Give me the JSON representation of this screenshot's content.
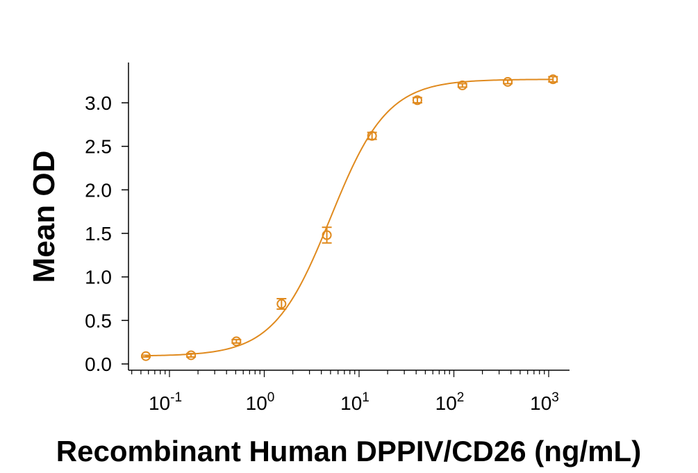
{
  "chart_data": {
    "type": "scatter",
    "title": "",
    "xlabel": "Recombinant Human DPPIV/CD26 (ng/mL)",
    "ylabel": "Mean OD",
    "xscale": "log",
    "xlim": [
      0.04,
      2000
    ],
    "ylim": [
      0,
      3.4
    ],
    "yticks": [
      0.0,
      0.5,
      1.0,
      1.5,
      2.0,
      2.5,
      3.0
    ],
    "ytick_labels": [
      "0.0",
      "0.5",
      "1.0",
      "1.5",
      "2.0",
      "2.5",
      "3.0"
    ],
    "xticks": [
      {
        "value": 0.1,
        "base": "10",
        "exp": "-1"
      },
      {
        "value": 1,
        "base": "10",
        "exp": "0"
      },
      {
        "value": 10,
        "base": "10",
        "exp": "1"
      },
      {
        "value": 100,
        "base": "10",
        "exp": "2"
      },
      {
        "value": 1000,
        "base": "10",
        "exp": "3"
      }
    ],
    "color": "#E08A1E",
    "grid": false,
    "series": [
      {
        "x": [
          0.0564,
          0.169,
          0.508,
          1.52,
          4.57,
          13.7,
          41.2,
          123,
          370,
          1111
        ],
        "y": [
          0.09,
          0.1,
          0.26,
          0.69,
          1.48,
          2.62,
          3.03,
          3.2,
          3.24,
          3.27
        ],
        "err": [
          0.01,
          0.02,
          0.02,
          0.06,
          0.09,
          0.04,
          0.03,
          0.02,
          0.02,
          0.03
        ]
      }
    ],
    "fit": {
      "model": "4PL",
      "bottom": 0.09,
      "top": 3.27,
      "ec50": 5.0,
      "hill": 1.45
    }
  }
}
